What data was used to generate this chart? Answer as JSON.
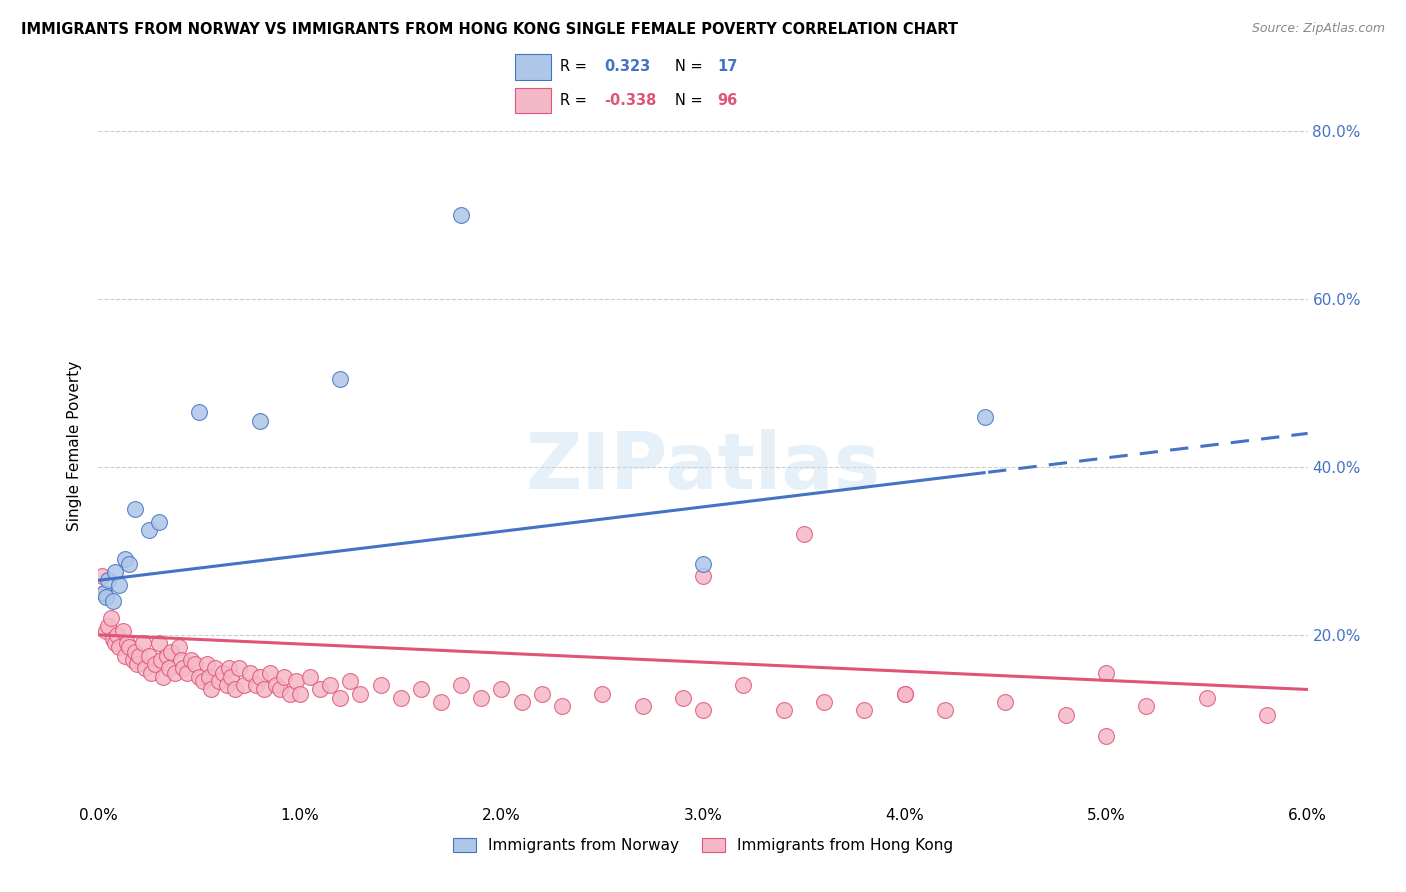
{
  "title": "IMMIGRANTS FROM NORWAY VS IMMIGRANTS FROM HONG KONG SINGLE FEMALE POVERTY CORRELATION CHART",
  "source": "Source: ZipAtlas.com",
  "ylabel": "Single Female Poverty",
  "legend_label1": "Immigrants from Norway",
  "legend_label2": "Immigrants from Hong Kong",
  "r1": 0.323,
  "n1": 17,
  "r2": -0.338,
  "n2": 96,
  "norway_fill": "#aec6e8",
  "norway_edge": "#4472c4",
  "hk_fill": "#f5b8c8",
  "hk_edge": "#e05575",
  "norway_line": "#4472c4",
  "hk_line": "#e05575",
  "watermark_text": "ZIPatlas",
  "xlim": [
    0,
    6
  ],
  "ylim": [
    0,
    85
  ],
  "x_ticks": [
    0,
    1,
    2,
    3,
    4,
    5,
    6
  ],
  "y_ticks_right": [
    20,
    40,
    60,
    80
  ],
  "norway_trend_y0": 26.5,
  "norway_trend_y6": 44.0,
  "norway_solid_end_x": 4.4,
  "hk_trend_y0": 20.0,
  "hk_trend_y6": 13.5,
  "norway_dots_x": [
    0.03,
    0.04,
    0.05,
    0.07,
    0.08,
    0.1,
    0.13,
    0.15,
    0.18,
    0.25,
    0.3,
    0.5,
    0.8,
    1.2,
    1.8,
    3.0,
    4.4
  ],
  "norway_dots_y": [
    25.0,
    24.5,
    26.5,
    24.0,
    27.5,
    26.0,
    29.0,
    28.5,
    35.0,
    32.5,
    33.5,
    46.5,
    45.5,
    50.5,
    70.0,
    28.5,
    46.0
  ],
  "hk_dots_x": [
    0.02,
    0.03,
    0.04,
    0.05,
    0.06,
    0.07,
    0.08,
    0.09,
    0.1,
    0.12,
    0.13,
    0.14,
    0.15,
    0.17,
    0.18,
    0.19,
    0.2,
    0.22,
    0.23,
    0.25,
    0.26,
    0.28,
    0.3,
    0.31,
    0.32,
    0.34,
    0.35,
    0.36,
    0.38,
    0.4,
    0.41,
    0.42,
    0.44,
    0.46,
    0.48,
    0.5,
    0.52,
    0.54,
    0.55,
    0.56,
    0.58,
    0.6,
    0.62,
    0.64,
    0.65,
    0.66,
    0.68,
    0.7,
    0.72,
    0.75,
    0.78,
    0.8,
    0.82,
    0.85,
    0.88,
    0.9,
    0.92,
    0.95,
    0.98,
    1.0,
    1.05,
    1.1,
    1.15,
    1.2,
    1.25,
    1.3,
    1.4,
    1.5,
    1.6,
    1.7,
    1.8,
    1.9,
    2.0,
    2.1,
    2.2,
    2.3,
    2.5,
    2.7,
    2.9,
    3.0,
    3.2,
    3.4,
    3.6,
    3.8,
    4.0,
    4.2,
    4.5,
    4.8,
    5.0,
    5.2,
    5.5,
    5.8,
    3.0,
    3.5,
    4.0,
    5.0
  ],
  "hk_dots_y": [
    27.0,
    25.0,
    20.5,
    21.0,
    22.0,
    19.5,
    19.0,
    20.0,
    18.5,
    20.5,
    17.5,
    19.0,
    18.5,
    17.0,
    18.0,
    16.5,
    17.5,
    19.0,
    16.0,
    17.5,
    15.5,
    16.5,
    19.0,
    17.0,
    15.0,
    17.5,
    16.0,
    18.0,
    15.5,
    18.5,
    17.0,
    16.0,
    15.5,
    17.0,
    16.5,
    15.0,
    14.5,
    16.5,
    15.0,
    13.5,
    16.0,
    14.5,
    15.5,
    14.0,
    16.0,
    15.0,
    13.5,
    16.0,
    14.0,
    15.5,
    14.0,
    15.0,
    13.5,
    15.5,
    14.0,
    13.5,
    15.0,
    13.0,
    14.5,
    13.0,
    15.0,
    13.5,
    14.0,
    12.5,
    14.5,
    13.0,
    14.0,
    12.5,
    13.5,
    12.0,
    14.0,
    12.5,
    13.5,
    12.0,
    13.0,
    11.5,
    13.0,
    11.5,
    12.5,
    11.0,
    14.0,
    11.0,
    12.0,
    11.0,
    13.0,
    11.0,
    12.0,
    10.5,
    15.5,
    11.5,
    12.5,
    10.5,
    27.0,
    32.0,
    13.0,
    8.0
  ]
}
